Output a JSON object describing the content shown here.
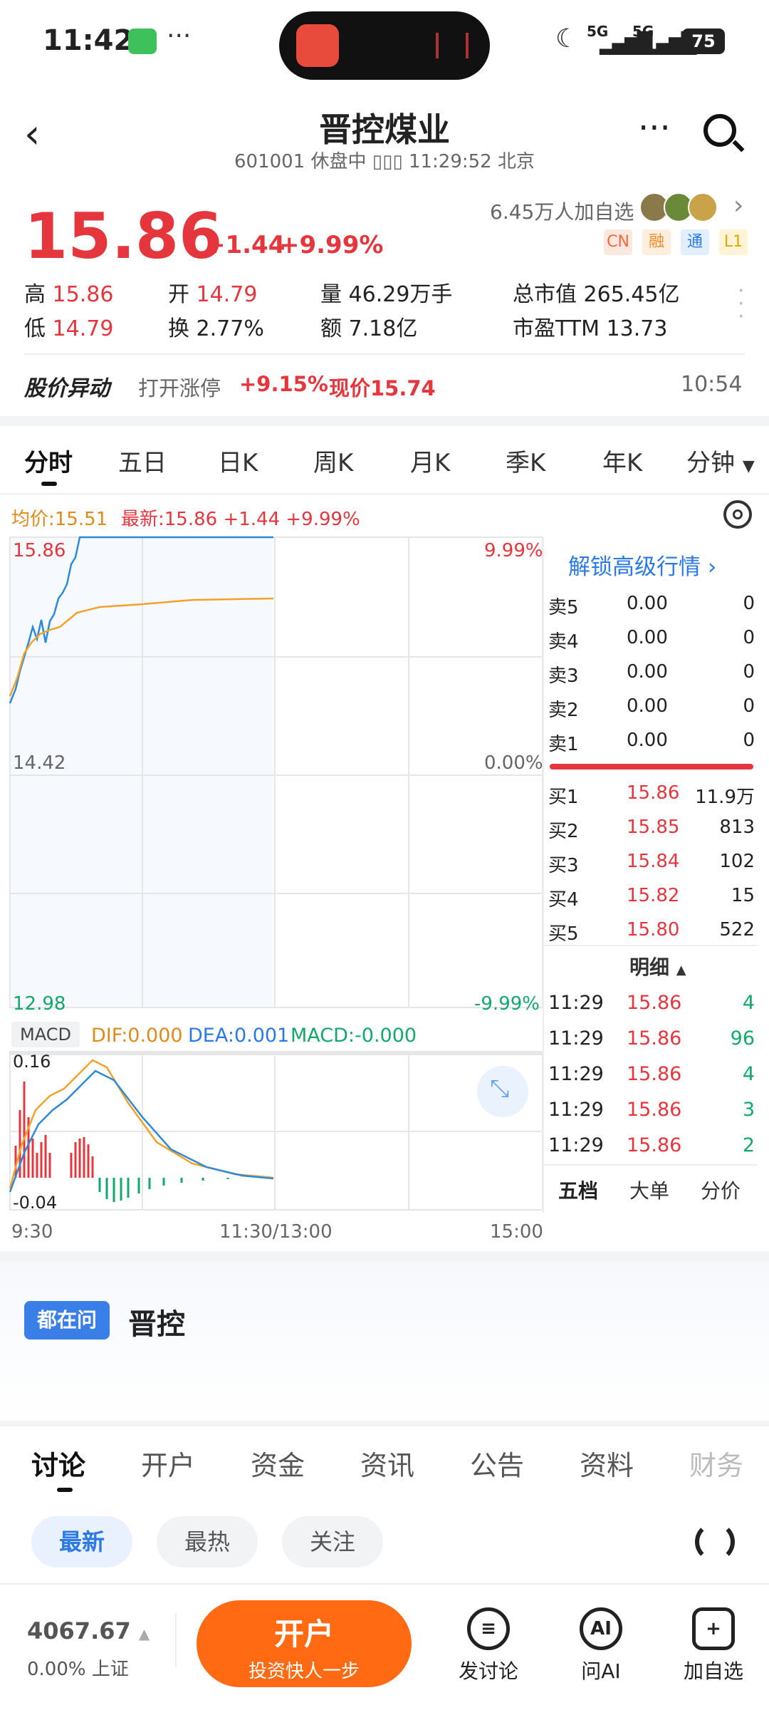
{
  "status": {
    "time": "11:42",
    "signal1": "5G",
    "signal2": "5G",
    "battery": "75"
  },
  "nav": {
    "title": "晋控煤业",
    "subtitle": "601001 休盘中 ▯▯▯ 11:29:52 北京"
  },
  "quote": {
    "price": "15.86",
    "change": "+1.44",
    "change_pct": "+9.99%",
    "watchers": "6.45万人加自选",
    "tags": [
      "CN",
      "融",
      "通",
      "L1"
    ],
    "stats": [
      {
        "label": "高",
        "value": "15.86",
        "red": true
      },
      {
        "label": "开",
        "value": "14.79",
        "red": true
      },
      {
        "label": "量",
        "value": "46.29万手",
        "red": false
      },
      {
        "label": "总市值",
        "value": "265.45亿",
        "red": false
      },
      {
        "label": "低",
        "value": "14.79",
        "red": true
      },
      {
        "label": "换",
        "value": "2.77%",
        "red": false
      },
      {
        "label": "额",
        "value": "7.18亿",
        "red": false
      },
      {
        "label": "市盈TTM",
        "value": "13.73",
        "red": false
      }
    ],
    "alert_title": "股价异动",
    "alert_text": "打开涨停",
    "alert_pct": "+9.15%",
    "alert_price": "现价15.74",
    "alert_time": "10:54"
  },
  "chart_tabs": [
    "分时",
    "五日",
    "日K",
    "周K",
    "月K",
    "季K",
    "年K",
    "分钟"
  ],
  "legend": {
    "avg": "均价:15.51",
    "latest": "最新:15.86 +1.44 +9.99%"
  },
  "chart": {
    "y_top": "15.86",
    "y_mid": "14.42",
    "y_bot": "12.98",
    "pct_top": "9.99%",
    "pct_mid": "0.00%",
    "pct_bot": "-9.99%",
    "macd_label": "MACD",
    "dif": "DIF:0.000",
    "dea": "DEA:0.001",
    "macd": "MACD:-0.000",
    "macd_top": "0.16",
    "macd_bot": "-0.04",
    "x_start": "9:30",
    "x_mid": "11:30/13:00",
    "x_end": "15:00"
  },
  "orderbook": {
    "unlock": "解锁高级行情",
    "sells": [
      {
        "label": "卖5",
        "price": "0.00",
        "vol": "0"
      },
      {
        "label": "卖4",
        "price": "0.00",
        "vol": "0"
      },
      {
        "label": "卖3",
        "price": "0.00",
        "vol": "0"
      },
      {
        "label": "卖2",
        "price": "0.00",
        "vol": "0"
      },
      {
        "label": "卖1",
        "price": "0.00",
        "vol": "0"
      }
    ],
    "buys": [
      {
        "label": "买1",
        "price": "15.86",
        "vol": "11.9万"
      },
      {
        "label": "买2",
        "price": "15.85",
        "vol": "813"
      },
      {
        "label": "买3",
        "price": "15.84",
        "vol": "102"
      },
      {
        "label": "买4",
        "price": "15.82",
        "vol": "15"
      },
      {
        "label": "买5",
        "price": "15.80",
        "vol": "522"
      }
    ],
    "detail_title": "明细",
    "details": [
      {
        "time": "11:29",
        "price": "15.86",
        "vol": "4"
      },
      {
        "time": "11:29",
        "price": "15.86",
        "vol": "96"
      },
      {
        "time": "11:29",
        "price": "15.86",
        "vol": "4"
      },
      {
        "time": "11:29",
        "price": "15.86",
        "vol": "3"
      },
      {
        "time": "11:29",
        "price": "15.86",
        "vol": "2"
      }
    ],
    "bottom_tabs": [
      "五档",
      "大单",
      "分价"
    ]
  },
  "ask": {
    "badge": "都在问",
    "text": "晋控"
  },
  "discuss_tabs": [
    "讨论",
    "开户",
    "资金",
    "资讯",
    "公告",
    "资料",
    "财务"
  ],
  "filters": [
    "最新",
    "最热",
    "关注"
  ],
  "footer": {
    "index_value": "4067.67",
    "index_change": "0.00% 上证",
    "open_btn": "开户",
    "open_sub": "投资快人一步",
    "tools": [
      "发讨论",
      "问AI",
      "加自选"
    ]
  },
  "colors": {
    "red": "#e5363d",
    "blue": "#2a79e5",
    "orange": "#ff6a13",
    "green": "#13a86b"
  }
}
